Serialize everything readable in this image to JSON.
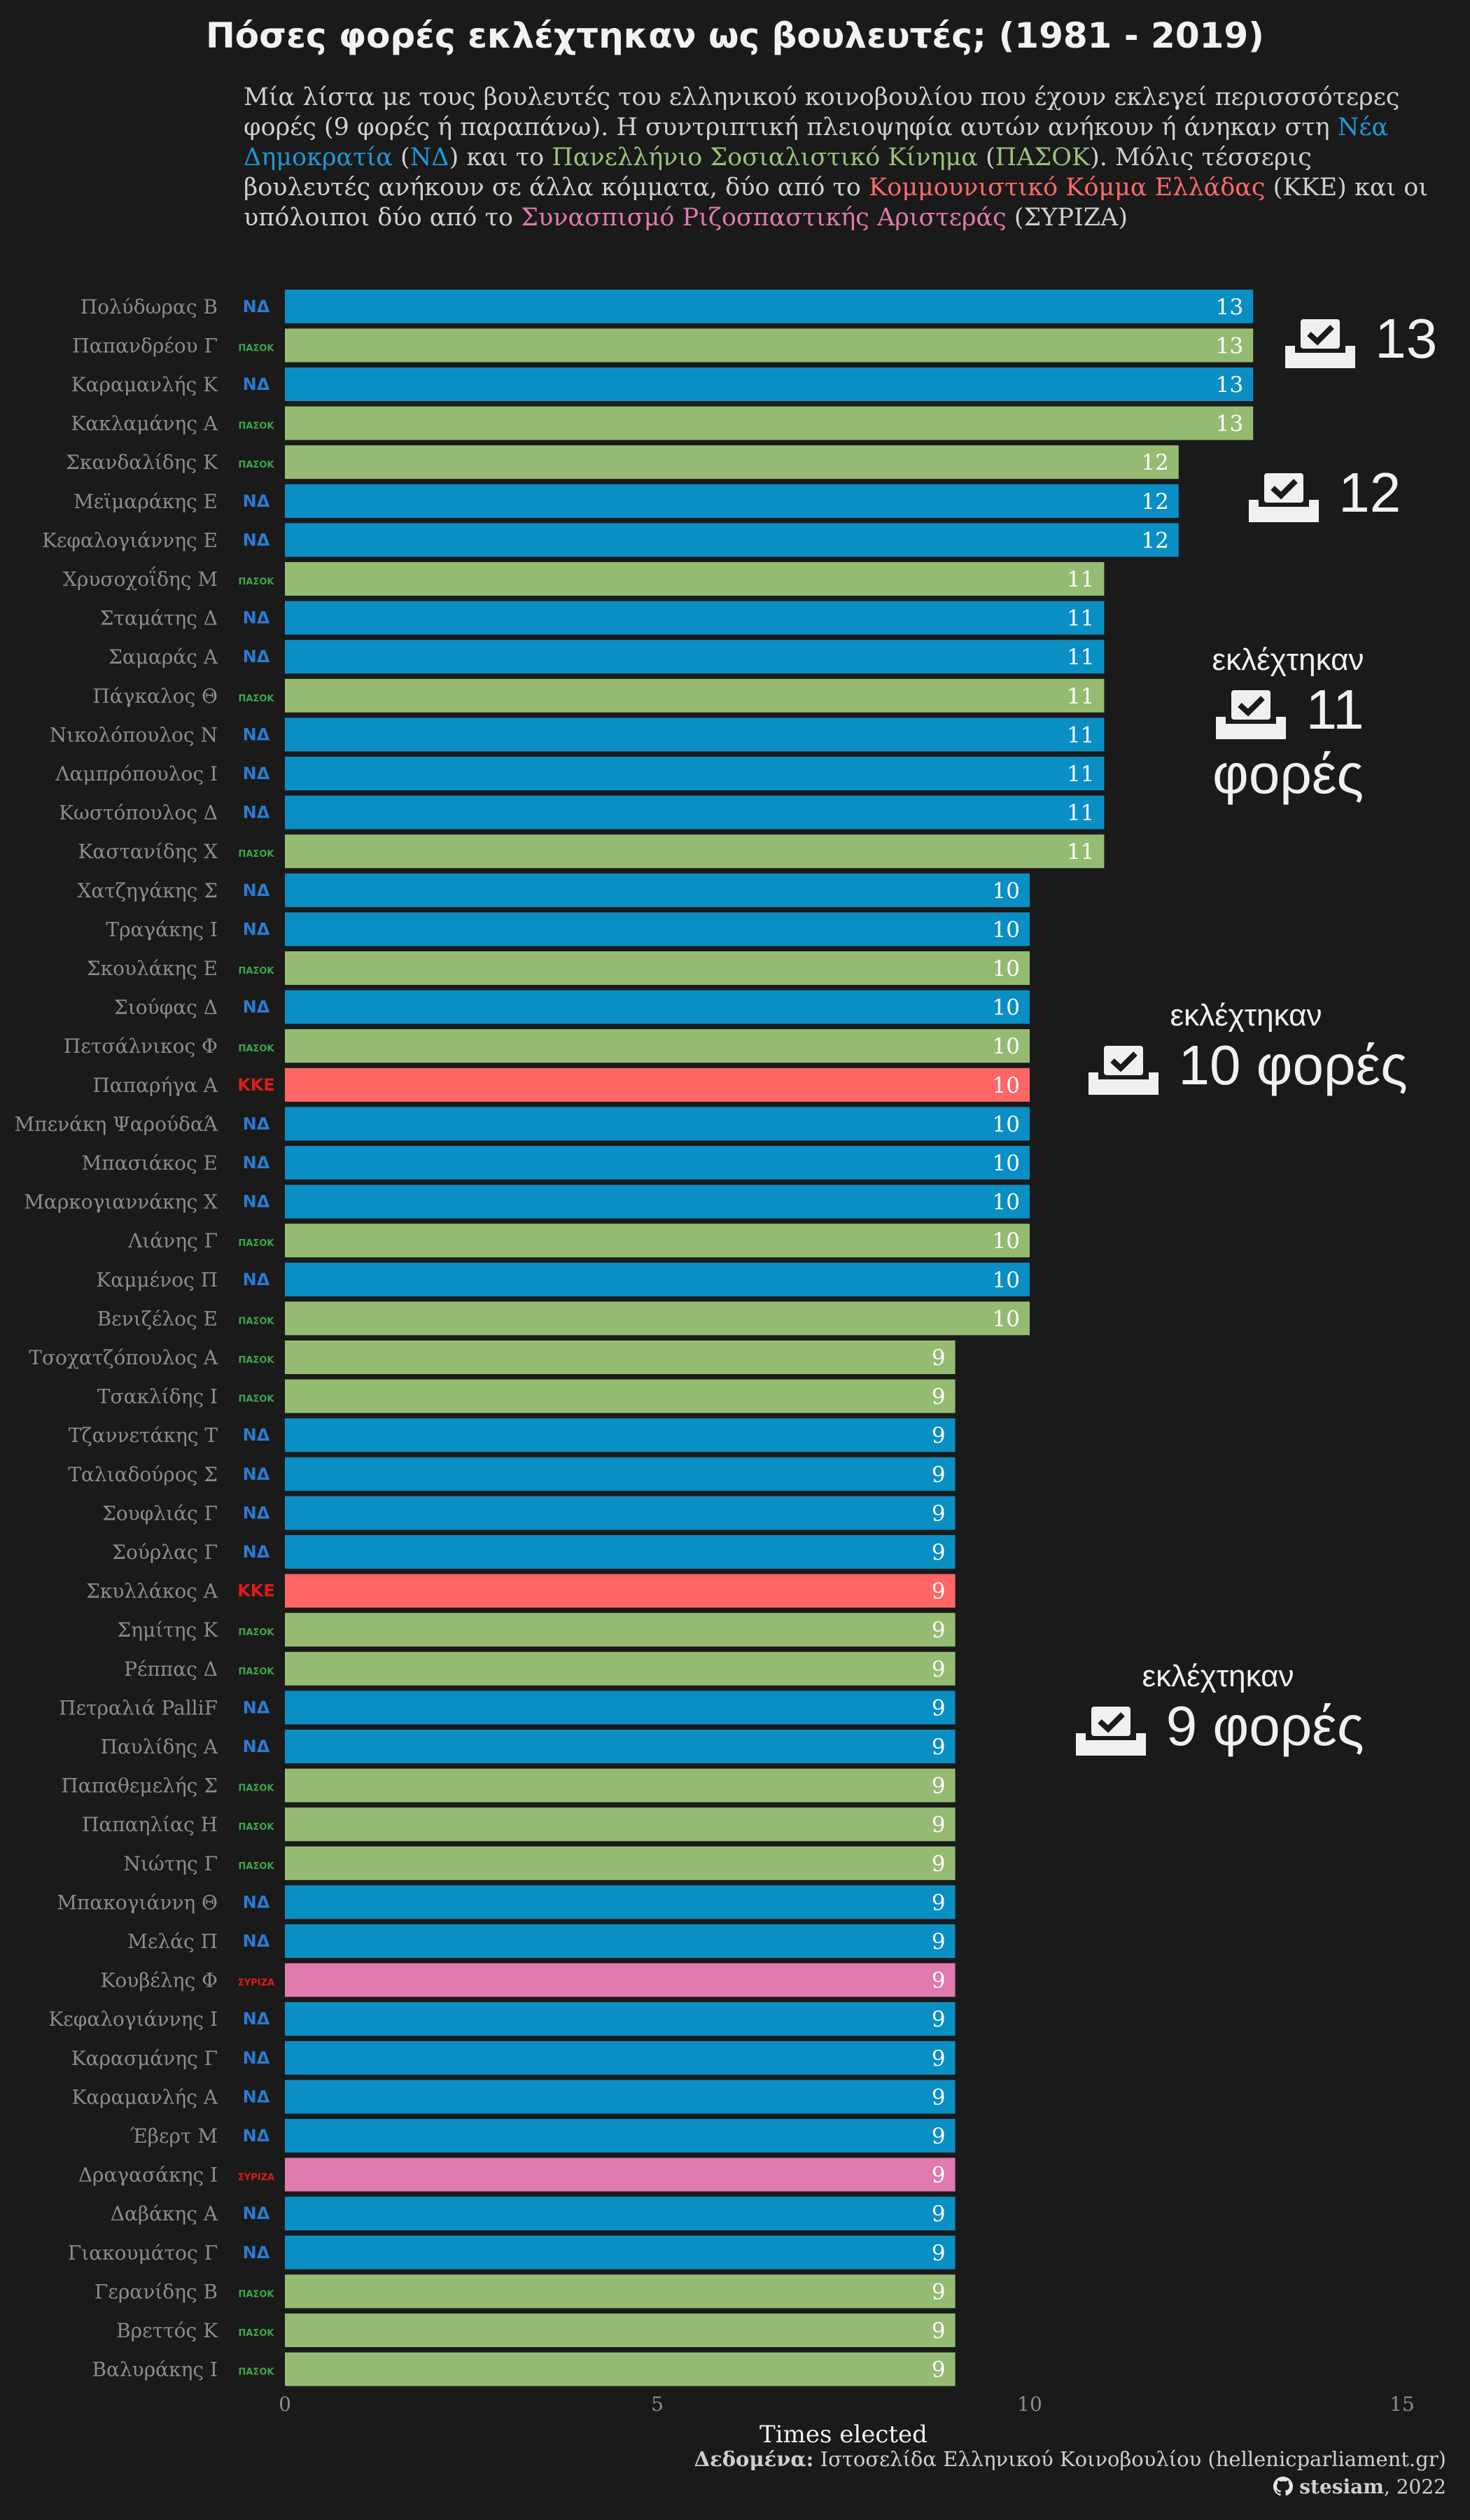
{
  "subtitle": {
    "p1": "Μία λίστα με τους βουλευτές του ελληνικού κοινοβουλίου που έχουν εκλεγεί περισσσότερες φορές (9 φορές ή παραπάνω). Η συντριπτική πλειοψηφία αυτών ανήκουν ή άνηκαν στη ",
    "nd": "Νέα Δημοκρατία",
    "p2": " (",
    "nd_abbr": "ΝΔ",
    "p3": ") και το ",
    "pasok": "Πανελλήνιο Σοσιαλιστικό Κίνημα",
    "p4": " (",
    "pasok_abbr": "ΠΑΣΟΚ",
    "p5": "). Μόλις τέσσερις βουλευτές ανήκουν σε άλλα κόμματα, δύο από το ",
    "kke": "Κομμουνιστικό Κόμμα Ελλάδας",
    "p6": " (ΚΚΕ) και οι υπόλοιποι δύο από το ",
    "syriza": "Συνασπισμό Ριζοσπαστικής Αριστεράς",
    "p7": " (ΣΥΡΙΖΑ)"
  },
  "annotations": {
    "a13": {
      "num": "13"
    },
    "a12": {
      "num": "12"
    },
    "a11": {
      "top": "εκλέχτηκαν",
      "num": "11",
      "bottom": "φορές"
    },
    "a10": {
      "top": "εκλέχτηκαν",
      "num": "10 φορές"
    },
    "a9": {
      "top": "εκλέχτηκαν",
      "num": "9 φορές"
    }
  },
  "footer": {
    "source_label": "Δεδομένα:",
    "source_text": "Ιστοσελίδα Ελληνικού Κοινοβουλίου (hellenicparliament.gr)",
    "author": "stesiam",
    "year": ", 2022"
  },
  "colors": {
    "ND": "#0a8fc4",
    "PASOK": "#95bb72",
    "KKE": "#ff6666",
    "SYRIZA": "#e07aaf",
    "background": "#1a1a1a"
  },
  "party_logos": {
    "ND": "ΝΔ",
    "PASOK": "ΠΑΣΟΚ",
    "KKE": "ΚΚΕ",
    "SYRIZA": "ΣΥΡΙΖΑ"
  },
  "chart_data": {
    "type": "bar",
    "orientation": "horizontal",
    "title": "Πόσες φορές εκλέχτηκαν ως βουλευτές; (1981 - 2019)",
    "xlabel": "Times elected",
    "ylabel": "",
    "xlim": [
      0,
      15
    ],
    "xticks": [
      0,
      5,
      10,
      15
    ],
    "grid": false,
    "categories": [
      "Πολύδωρας Β",
      "Παπανδρέου Γ",
      "Καραμανλής Κ",
      "Κακλαμάνης Α",
      "Σκανδαλίδης Κ",
      "Μεϊμαράκης Ε",
      "Κεφαλογιάννης Ε",
      "Χρυσοχοΐδης Μ",
      "Σταμάτης Δ",
      "Σαμαράς Α",
      "Πάγκαλος Θ",
      "Νικολόπουλος Ν",
      "Λαμπρόπουλος Ι",
      "Κωστόπουλος Δ",
      "Καστανίδης Χ",
      "Χατζηγάκης Σ",
      "Τραγάκης Ι",
      "Σκουλάκης Ε",
      "Σιούφας Δ",
      "Πετσάλνικος Φ",
      "Παπαρήγα Α",
      "Μπενάκη ΨαρούδαΆ",
      "Μπασιάκος Ε",
      "Μαρκογιαννάκης Χ",
      "Λιάνης Γ",
      "Καμμένος Π",
      "Βενιζέλος Ε",
      "Τσοχατζόπουλος Α",
      "Τσακλίδης Ι",
      "Τζαννετάκης Τ",
      "Ταλιαδούρος Σ",
      "Σουφλιάς Γ",
      "Σούρλας Γ",
      "Σκυλλάκος Α",
      "Σημίτης Κ",
      "Ρέππας Δ",
      "Πετραλιά PalliF",
      "Παυλίδης Α",
      "Παπαθεμελής Σ",
      "Παπαηλίας Η",
      "Νιώτης Γ",
      "Μπακογιάννη Θ",
      "Μελάς Π",
      "Κουβέλης Φ",
      "Κεφαλογιάννης Ι",
      "Καρασμάνης Γ",
      "Καραμανλής Α",
      "Έβερτ Μ",
      "Δραγασάκης Ι",
      "Δαβάκης Α",
      "Γιακουμάτος Γ",
      "Γερανίδης Β",
      "Βρεττός Κ",
      "Βαλυράκης Ι"
    ],
    "values": [
      13,
      13,
      13,
      13,
      12,
      12,
      12,
      11,
      11,
      11,
      11,
      11,
      11,
      11,
      11,
      10,
      10,
      10,
      10,
      10,
      10,
      10,
      10,
      10,
      10,
      10,
      10,
      9,
      9,
      9,
      9,
      9,
      9,
      9,
      9,
      9,
      9,
      9,
      9,
      9,
      9,
      9,
      9,
      9,
      9,
      9,
      9,
      9,
      9,
      9,
      9,
      9,
      9,
      9
    ],
    "parties": [
      "ND",
      "PASOK",
      "ND",
      "PASOK",
      "PASOK",
      "ND",
      "ND",
      "PASOK",
      "ND",
      "ND",
      "PASOK",
      "ND",
      "ND",
      "ND",
      "PASOK",
      "ND",
      "ND",
      "PASOK",
      "ND",
      "PASOK",
      "KKE",
      "ND",
      "ND",
      "ND",
      "PASOK",
      "ND",
      "PASOK",
      "PASOK",
      "PASOK",
      "ND",
      "ND",
      "ND",
      "ND",
      "KKE",
      "PASOK",
      "PASOK",
      "ND",
      "ND",
      "PASOK",
      "PASOK",
      "PASOK",
      "ND",
      "ND",
      "SYRIZA",
      "ND",
      "ND",
      "ND",
      "ND",
      "SYRIZA",
      "ND",
      "ND",
      "PASOK",
      "PASOK",
      "PASOK"
    ]
  }
}
